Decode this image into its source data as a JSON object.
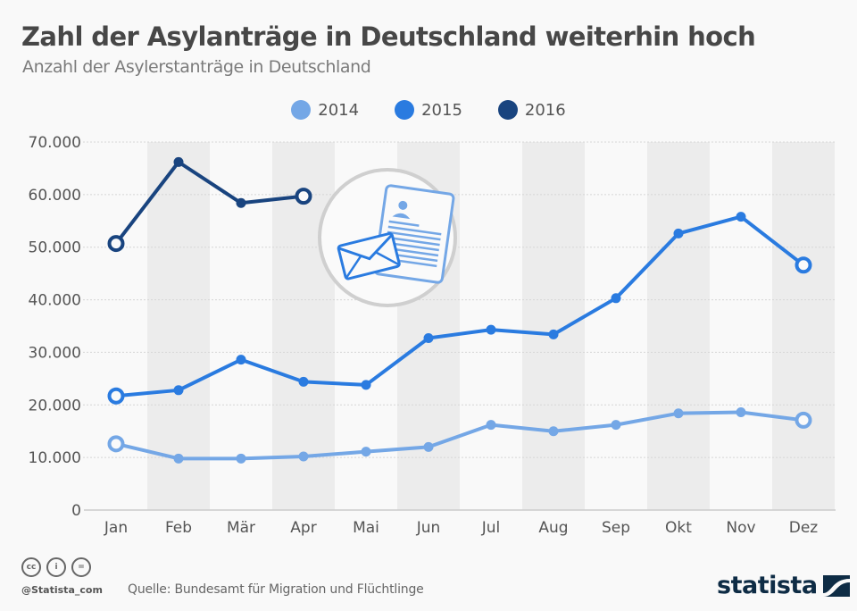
{
  "header": {
    "title": "Zahl der Asylanträge in Deutschland weiterhin hoch",
    "subtitle": "Anzahl der Asylerstanträge in Deutschland"
  },
  "legend": [
    {
      "label": "2014",
      "color": "#74a7e6"
    },
    {
      "label": "2015",
      "color": "#2a7be0"
    },
    {
      "label": "2016",
      "color": "#19447f"
    }
  ],
  "chart_data": {
    "type": "line",
    "title": "Zahl der Asylanträge in Deutschland weiterhin hoch",
    "subtitle": "Anzahl der Asylerstanträge in Deutschland",
    "xlabel": "",
    "ylabel": "",
    "categories": [
      "Jan",
      "Feb",
      "Mär",
      "Apr",
      "Mai",
      "Jun",
      "Jul",
      "Aug",
      "Sep",
      "Okt",
      "Nov",
      "Dez"
    ],
    "ylim": [
      0,
      70000
    ],
    "yticks": [
      0,
      10000,
      20000,
      30000,
      40000,
      50000,
      60000,
      70000
    ],
    "ytick_labels": [
      "0",
      "10.000",
      "20.000",
      "30.000",
      "40.000",
      "50.000",
      "60.000",
      "70.000"
    ],
    "grid": true,
    "legend_position": "top-center",
    "series": [
      {
        "name": "2014",
        "color": "#74a7e6",
        "values": [
          12600,
          9800,
          9800,
          10200,
          11100,
          12000,
          16200,
          15000,
          16200,
          18400,
          18600,
          17100
        ]
      },
      {
        "name": "2015",
        "color": "#2a7be0",
        "values": [
          21700,
          22800,
          28600,
          24400,
          23800,
          32700,
          34300,
          33400,
          40300,
          52600,
          55800,
          46600
        ]
      },
      {
        "name": "2016",
        "color": "#19447f",
        "values": [
          50700,
          66200,
          58400,
          59700,
          null,
          null,
          null,
          null,
          null,
          null,
          null,
          null
        ]
      }
    ]
  },
  "footer": {
    "cc_icons": [
      "cc",
      "i",
      "="
    ],
    "handle": "@Statista_com",
    "source": "Quelle: Bundesamt für Migration und Flüchtlinge",
    "logo_text": "statista"
  }
}
